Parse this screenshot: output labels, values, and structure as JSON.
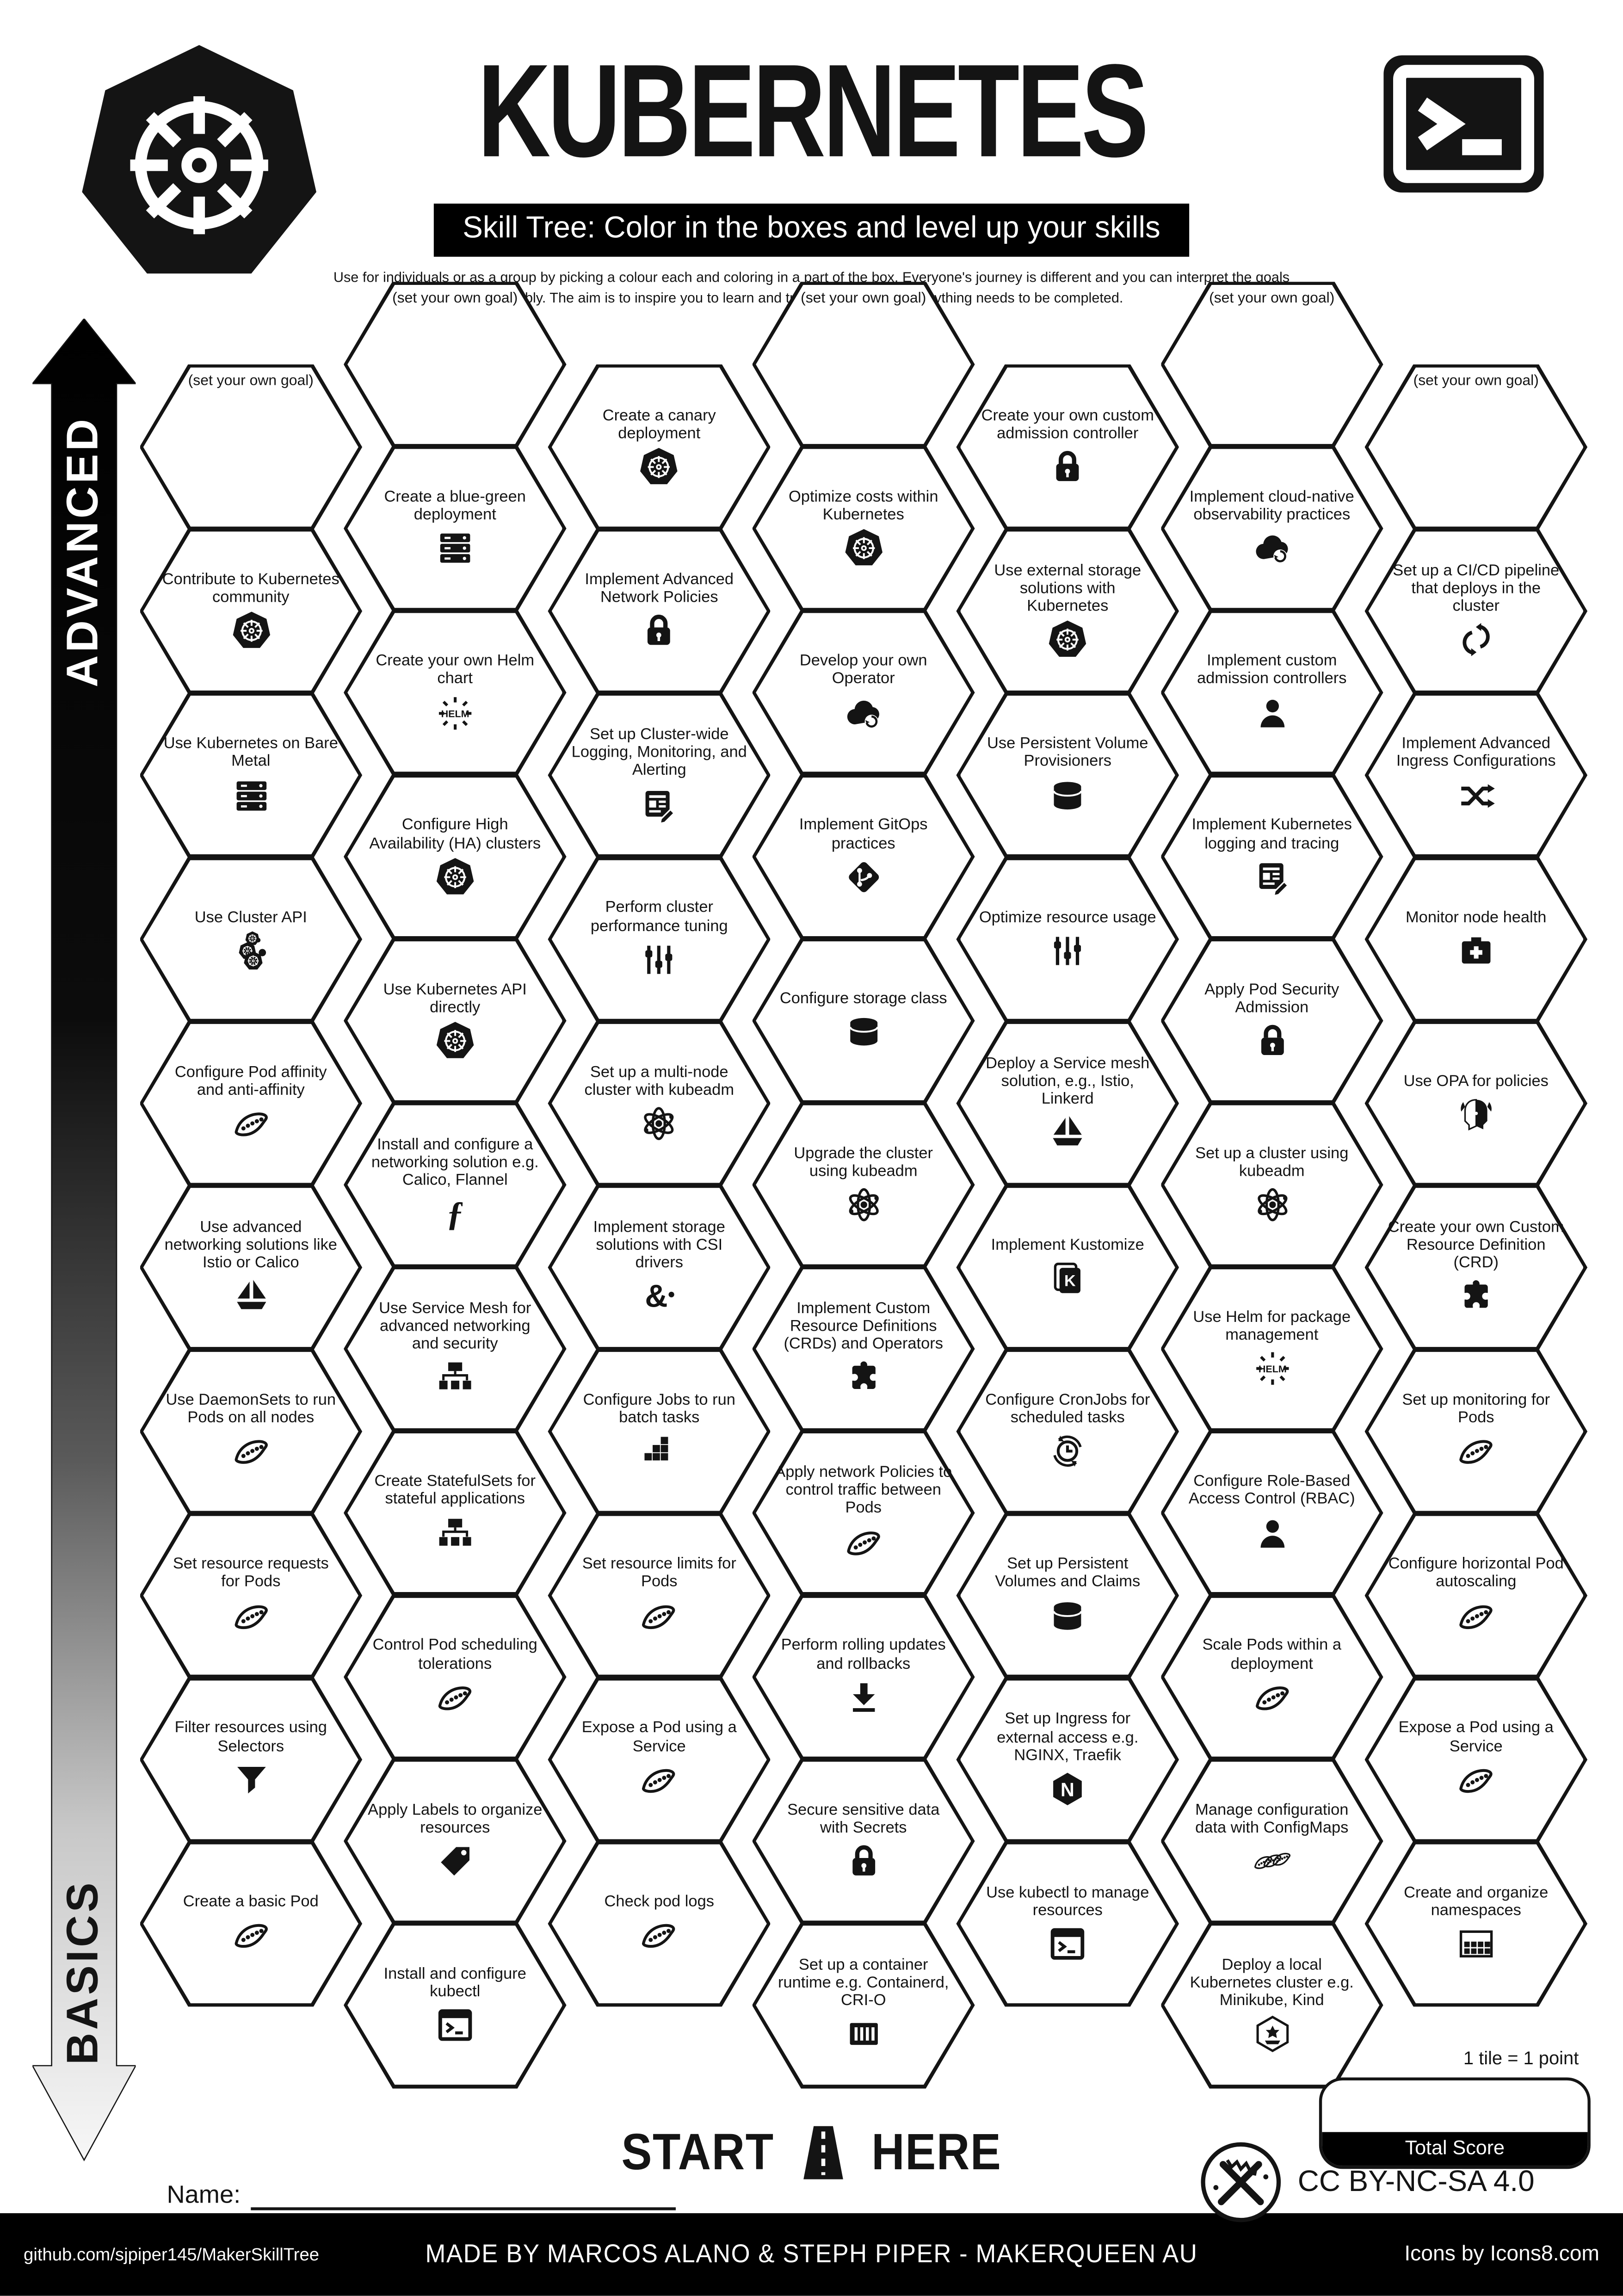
{
  "header": {
    "title": "KUBERNETES",
    "subtitle": "Skill Tree:  Color in the boxes and level up your skills",
    "description": "Use for individuals or as a group by picking a colour each and coloring in a part of the box.  Everyone's journey is different and you can interpret the goals flexibly.  The aim is to inspire you to learn and try new things. Not everything needs to be completed."
  },
  "sidebar": {
    "top_label": "ADVANCED",
    "bottom_label": "BASICS"
  },
  "start": {
    "start_label": "START",
    "here_label": "HERE"
  },
  "name_field": {
    "label": "Name:"
  },
  "legend": {
    "tile_note": "1 tile = 1 point",
    "total_score_label": "Total Score",
    "license": "CC BY-NC-SA 4.0"
  },
  "footer": {
    "left": "github.com/sjpiper145/MakerSkillTree",
    "center": "MADE BY MARCOS ALANO & STEPH PIPER  -  MAKERQUEEN AU",
    "right": "Icons by Icons8.com"
  },
  "colors": {
    "ink": "#141414",
    "paper": "#ffffff"
  },
  "hexes": [
    {
      "label": "(set your own goal)",
      "icon": null,
      "col": 0,
      "row": 0,
      "goal": true
    },
    {
      "label": "Contribute to Kubernetes community",
      "icon": "kubernetes",
      "col": 0,
      "row": 1
    },
    {
      "label": "Use Kubernetes on Bare Metal",
      "icon": "server",
      "col": 0,
      "row": 2
    },
    {
      "label": "Use Cluster API",
      "icon": "cluster-api",
      "col": 0,
      "row": 3
    },
    {
      "label": "Configure Pod affinity and anti-affinity",
      "icon": "peapod",
      "col": 0,
      "row": 4
    },
    {
      "label": "Use advanced networking solutions like Istio or Calico",
      "icon": "sailboat",
      "col": 0,
      "row": 5
    },
    {
      "label": "Use DaemonSets to run Pods on all nodes",
      "icon": "peapod",
      "col": 0,
      "row": 6
    },
    {
      "label": "Set resource requests for Pods",
      "icon": "peapod",
      "col": 0,
      "row": 7
    },
    {
      "label": "Filter resources using Selectors",
      "icon": "funnel",
      "col": 0,
      "row": 8
    },
    {
      "label": "Create a basic Pod",
      "icon": "peapod",
      "col": 0,
      "row": 9
    },
    {
      "label": "(set your own goal)",
      "icon": null,
      "col": 1,
      "row": 0,
      "goal": true
    },
    {
      "label": "Create a blue-green deployment",
      "icon": "server",
      "col": 1,
      "row": 1
    },
    {
      "label": "Create your own Helm chart",
      "icon": "helm",
      "col": 1,
      "row": 2
    },
    {
      "label": "Configure High Availability (HA) clusters",
      "icon": "kubernetes",
      "col": 1,
      "row": 3
    },
    {
      "label": "Use Kubernetes API directly",
      "icon": "kubernetes",
      "col": 1,
      "row": 4
    },
    {
      "label": "Install and configure a networking solution e.g. Calico, Flannel",
      "icon": "flannel",
      "col": 1,
      "row": 5
    },
    {
      "label": "Use Service Mesh for advanced networking and security",
      "icon": "hierarchy",
      "col": 1,
      "row": 6
    },
    {
      "label": "Create StatefulSets for stateful applications",
      "icon": "hierarchy",
      "col": 1,
      "row": 7
    },
    {
      "label": "Control Pod scheduling tolerations",
      "icon": "peapod",
      "col": 1,
      "row": 8
    },
    {
      "label": "Apply Labels to organize resources",
      "icon": "tag",
      "col": 1,
      "row": 9
    },
    {
      "label": "Install and configure kubectl",
      "icon": "terminal",
      "col": 1,
      "row": 10
    },
    {
      "label": "Create a canary deployment",
      "icon": "kubernetes",
      "col": 2,
      "row": 0
    },
    {
      "label": "Implement Advanced Network Policies",
      "icon": "lock",
      "col": 2,
      "row": 1
    },
    {
      "label": "Set up Cluster-wide Logging, Monitoring, and Alerting",
      "icon": "doc",
      "col": 2,
      "row": 2
    },
    {
      "label": "Perform cluster performance tuning",
      "icon": "sliders",
      "col": 2,
      "row": 3
    },
    {
      "label": "Set up a multi-node cluster with kubeadm",
      "icon": "atom",
      "col": 2,
      "row": 4
    },
    {
      "label": "Implement storage solutions with CSI drivers",
      "icon": "csi",
      "col": 2,
      "row": 5
    },
    {
      "label": "Configure Jobs to run batch tasks",
      "icon": "blocks",
      "col": 2,
      "row": 6
    },
    {
      "label": "Set resource limits for Pods",
      "icon": "peapod",
      "col": 2,
      "row": 7
    },
    {
      "label": "Expose a Pod using a Service",
      "icon": "peapod",
      "col": 2,
      "row": 8
    },
    {
      "label": "Check pod logs",
      "icon": "peapod",
      "col": 2,
      "row": 9
    },
    {
      "label": "(set your own goal)",
      "icon": null,
      "col": 3,
      "row": 0,
      "goal": true
    },
    {
      "label": "Optimize costs within Kubernetes",
      "icon": "kubernetes",
      "col": 3,
      "row": 1
    },
    {
      "label": "Develop your own Operator",
      "icon": "cloud-sync",
      "col": 3,
      "row": 2
    },
    {
      "label": "Implement GitOps practices",
      "icon": "git",
      "col": 3,
      "row": 3
    },
    {
      "label": "Configure storage class",
      "icon": "cylinder",
      "col": 3,
      "row": 4
    },
    {
      "label": "Upgrade the cluster using kubeadm",
      "icon": "atom",
      "col": 3,
      "row": 5
    },
    {
      "label": "Implement Custom Resource Definitions (CRDs) and Operators",
      "icon": "puzzle",
      "col": 3,
      "row": 6
    },
    {
      "label": "Apply network Policies to control traffic between Pods",
      "icon": "peapod",
      "col": 3,
      "row": 7
    },
    {
      "label": "Perform rolling updates and rollbacks",
      "icon": "download",
      "col": 3,
      "row": 8
    },
    {
      "label": "Secure sensitive data with Secrets",
      "icon": "lock",
      "col": 3,
      "row": 9
    },
    {
      "label": "Set up a container runtime e.g. Containerd, CRI-O",
      "icon": "container",
      "col": 3,
      "row": 10
    },
    {
      "label": "Create your own custom admission controller",
      "icon": "lock",
      "col": 4,
      "row": 0
    },
    {
      "label": "Use external storage solutions with Kubernetes",
      "icon": "kubernetes",
      "col": 4,
      "row": 1
    },
    {
      "label": "Use Persistent Volume Provisioners",
      "icon": "cylinder",
      "col": 4,
      "row": 2
    },
    {
      "label": "Optimize resource usage",
      "icon": "sliders",
      "col": 4,
      "row": 3
    },
    {
      "label": "Deploy a Service mesh solution, e.g., Istio, Linkerd",
      "icon": "sailboat",
      "col": 4,
      "row": 4
    },
    {
      "label": "Implement Kustomize",
      "icon": "kustomize",
      "col": 4,
      "row": 5
    },
    {
      "label": "Configure CronJobs for scheduled tasks",
      "icon": "clock",
      "col": 4,
      "row": 6
    },
    {
      "label": "Set up Persistent Volumes and Claims",
      "icon": "cylinder",
      "col": 4,
      "row": 7
    },
    {
      "label": "Set up Ingress for external access e.g. NGINX, Traefik",
      "icon": "nginx",
      "col": 4,
      "row": 8
    },
    {
      "label": "Use kubectl to manage resources",
      "icon": "terminal",
      "col": 4,
      "row": 9
    },
    {
      "label": "(set your own goal)",
      "icon": null,
      "col": 5,
      "row": 0,
      "goal": true
    },
    {
      "label": "Implement cloud-native observability practices",
      "icon": "cloud-sync",
      "col": 5,
      "row": 1
    },
    {
      "label": "Implement custom admission controllers",
      "icon": "person",
      "col": 5,
      "row": 2
    },
    {
      "label": "Implement Kubernetes logging and tracing",
      "icon": "doc",
      "col": 5,
      "row": 3
    },
    {
      "label": "Apply Pod Security Admission",
      "icon": "lock",
      "col": 5,
      "row": 4
    },
    {
      "label": "Set up a cluster using kubeadm",
      "icon": "atom",
      "col": 5,
      "row": 5
    },
    {
      "label": "Use Helm for package management",
      "icon": "helm",
      "col": 5,
      "row": 6
    },
    {
      "label": "Configure Role-Based Access Control (RBAC)",
      "icon": "person",
      "col": 5,
      "row": 7
    },
    {
      "label": "Scale Pods within a deployment",
      "icon": "peapod",
      "col": 5,
      "row": 8
    },
    {
      "label": "Manage configuration data with ConfigMaps",
      "icon": "peapods",
      "col": 5,
      "row": 9
    },
    {
      "label": "Deploy a local Kubernetes cluster e.g. Minikube, Kind",
      "icon": "minikube",
      "col": 5,
      "row": 10
    },
    {
      "label": "(set your own goal)",
      "icon": null,
      "col": 6,
      "row": 0,
      "goal": true
    },
    {
      "label": "Set up a CI/CD pipeline that deploys in the cluster",
      "icon": "cicd",
      "col": 6,
      "row": 1
    },
    {
      "label": "Implement Advanced Ingress Configurations",
      "icon": "shuffle",
      "col": 6,
      "row": 2
    },
    {
      "label": "Monitor node health",
      "icon": "firstaid",
      "col": 6,
      "row": 3
    },
    {
      "label": "Use OPA for policies",
      "icon": "opa",
      "col": 6,
      "row": 4
    },
    {
      "label": "Create your own Custom Resource Definition (CRD)",
      "icon": "puzzle",
      "col": 6,
      "row": 5
    },
    {
      "label": "Set up monitoring for Pods",
      "icon": "peapod",
      "col": 6,
      "row": 6
    },
    {
      "label": "Configure horizontal Pod autoscaling",
      "icon": "peapod",
      "col": 6,
      "row": 7
    },
    {
      "label": "Expose a Pod using a Service",
      "icon": "peapod",
      "col": 6,
      "row": 8
    },
    {
      "label": "Create and organize namespaces",
      "icon": "grid",
      "col": 6,
      "row": 9
    }
  ]
}
